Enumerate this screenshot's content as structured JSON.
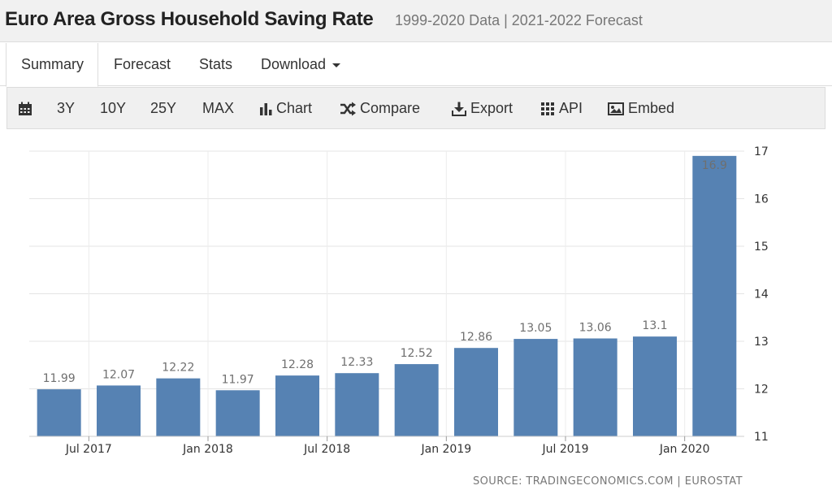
{
  "header": {
    "title": "Euro Area Gross Household Saving Rate",
    "subtitle": "1999-2020 Data | 2021-2022 Forecast"
  },
  "tabs": [
    {
      "label": "Summary",
      "active": true
    },
    {
      "label": "Forecast",
      "active": false
    },
    {
      "label": "Stats",
      "active": false
    },
    {
      "label": "Download",
      "active": false
    }
  ],
  "toolbar": {
    "calendar_icon": "calendar-icon",
    "ranges": [
      "3Y",
      "10Y",
      "25Y",
      "MAX"
    ],
    "chart_label": "Chart",
    "compare_label": "Compare",
    "export_label": "Export",
    "api_label": "API",
    "embed_label": "Embed"
  },
  "chart_data": {
    "type": "bar",
    "categories": [
      "2017-Q2",
      "2017-Q3",
      "2017-Q4",
      "2018-Q1",
      "2018-Q2",
      "2018-Q3",
      "2018-Q4",
      "2019-Q1",
      "2019-Q2",
      "2019-Q3",
      "2019-Q4",
      "2020-Q1"
    ],
    "values": [
      11.99,
      12.07,
      12.22,
      11.97,
      12.28,
      12.33,
      12.52,
      12.86,
      13.05,
      13.06,
      13.1,
      16.9
    ],
    "data_labels": [
      "11.99",
      "12.07",
      "12.22",
      "11.97",
      "12.28",
      "12.33",
      "12.52",
      "12.86",
      "13.05",
      "13.06",
      "13.1",
      "16.9"
    ],
    "x_tick_labels": [
      {
        "label": "Jul 2017",
        "category_index": 0.5
      },
      {
        "label": "Jan 2018",
        "category_index": 2.5
      },
      {
        "label": "Jul 2018",
        "category_index": 4.5
      },
      {
        "label": "Jan 2019",
        "category_index": 6.5
      },
      {
        "label": "Jul 2019",
        "category_index": 8.5
      },
      {
        "label": "Jan 2020",
        "category_index": 10.5
      }
    ],
    "y_ticks": [
      11,
      12,
      13,
      14,
      15,
      16,
      17
    ],
    "ylim": [
      11,
      17
    ],
    "grid": true,
    "y_axis_side": "right",
    "bar_color": "#5682b3",
    "title": "",
    "xlabel": "",
    "ylabel": ""
  },
  "source": "SOURCE: TRADINGECONOMICS.COM | EUROSTAT"
}
